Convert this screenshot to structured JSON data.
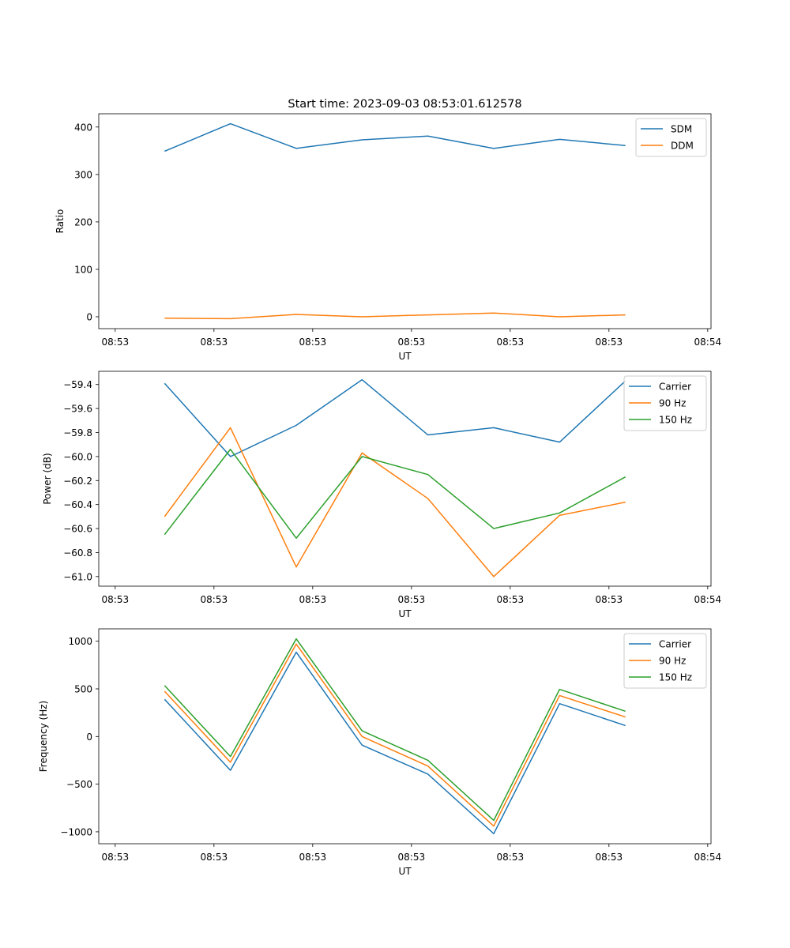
{
  "figure_title": "Start time: 2023-09-03 08:53:01.612578",
  "colors": {
    "blue": "#1f77b4",
    "orange": "#ff7f0e",
    "green": "#2ca02c"
  },
  "chart_data": [
    {
      "type": "line",
      "title": "Start time: 2023-09-03 08:53:01.612578",
      "xlabel": "UT",
      "ylabel": "Ratio",
      "x": [
        1,
        2,
        3,
        4,
        5,
        6,
        7,
        8
      ],
      "xlim": [
        0,
        9.3
      ],
      "xticks": [
        0.25,
        1.75,
        3.25,
        4.75,
        6.25,
        7.75,
        9.25
      ],
      "xtick_labels": [
        "08:53",
        "08:53",
        "08:53",
        "08:53",
        "08:53",
        "08:53",
        "08:54"
      ],
      "ylim": [
        -25,
        428
      ],
      "yticks": [
        0,
        100,
        200,
        300,
        400
      ],
      "ytick_labels": [
        "0",
        "100",
        "200",
        "300",
        "400"
      ],
      "legend": "top-right",
      "series": [
        {
          "name": "SDM",
          "color": "#1f77b4",
          "values": [
            349,
            407,
            355,
            373,
            381,
            355,
            374,
            361
          ]
        },
        {
          "name": "DDM",
          "color": "#ff7f0e",
          "values": [
            -3,
            -4,
            5,
            0,
            4,
            8,
            0,
            4
          ]
        }
      ]
    },
    {
      "type": "line",
      "title": "",
      "xlabel": "UT",
      "ylabel": "Power (dB)",
      "x": [
        1,
        2,
        3,
        4,
        5,
        6,
        7,
        8
      ],
      "xlim": [
        0,
        9.3
      ],
      "xticks": [
        0.25,
        1.75,
        3.25,
        4.75,
        6.25,
        7.75,
        9.25
      ],
      "xtick_labels": [
        "08:53",
        "08:53",
        "08:53",
        "08:53",
        "08:53",
        "08:53",
        "08:54"
      ],
      "ylim": [
        -61.08,
        -59.29
      ],
      "yticks": [
        -59.4,
        -59.6,
        -59.8,
        -60.0,
        -60.2,
        -60.4,
        -60.6,
        -60.8,
        -61.0
      ],
      "ytick_labels": [
        "−59.4",
        "−59.6",
        "−59.8",
        "−60.0",
        "−60.2",
        "−60.4",
        "−60.6",
        "−60.8",
        "−61.0"
      ],
      "legend": "top-right",
      "series": [
        {
          "name": "Carrier",
          "color": "#1f77b4",
          "values": [
            -59.39,
            -60.0,
            -59.74,
            -59.36,
            -59.82,
            -59.76,
            -59.88,
            -59.37
          ]
        },
        {
          "name": "90 Hz",
          "color": "#ff7f0e",
          "values": [
            -60.5,
            -59.76,
            -60.92,
            -59.97,
            -60.35,
            -61.0,
            -60.49,
            -60.38
          ]
        },
        {
          "name": "150 Hz",
          "color": "#2ca02c",
          "values": [
            -60.65,
            -59.94,
            -60.68,
            -60.0,
            -60.15,
            -60.6,
            -60.47,
            -60.17
          ]
        }
      ]
    },
    {
      "type": "line",
      "title": "",
      "xlabel": "UT",
      "ylabel": "Frequency (Hz)",
      "x": [
        1,
        2,
        3,
        4,
        5,
        6,
        7,
        8
      ],
      "xlim": [
        0,
        9.3
      ],
      "xticks": [
        0.25,
        1.75,
        3.25,
        4.75,
        6.25,
        7.75,
        9.25
      ],
      "xtick_labels": [
        "08:53",
        "08:53",
        "08:53",
        "08:53",
        "08:53",
        "08:53",
        "08:54"
      ],
      "ylim": [
        -1125,
        1130
      ],
      "yticks": [
        1000,
        500,
        0,
        -500,
        -1000
      ],
      "ytick_labels": [
        "1000",
        "500",
        "0",
        "−500",
        "−1000"
      ],
      "legend": "top-right",
      "series": [
        {
          "name": "Carrier",
          "color": "#1f77b4",
          "values": [
            390,
            -355,
            885,
            -90,
            -395,
            -1020,
            345,
            115
          ]
        },
        {
          "name": "90 Hz",
          "color": "#ff7f0e",
          "values": [
            475,
            -270,
            970,
            0,
            -310,
            -940,
            430,
            205
          ]
        },
        {
          "name": "150 Hz",
          "color": "#2ca02c",
          "values": [
            535,
            -210,
            1025,
            60,
            -250,
            -880,
            495,
            265
          ]
        }
      ]
    }
  ]
}
